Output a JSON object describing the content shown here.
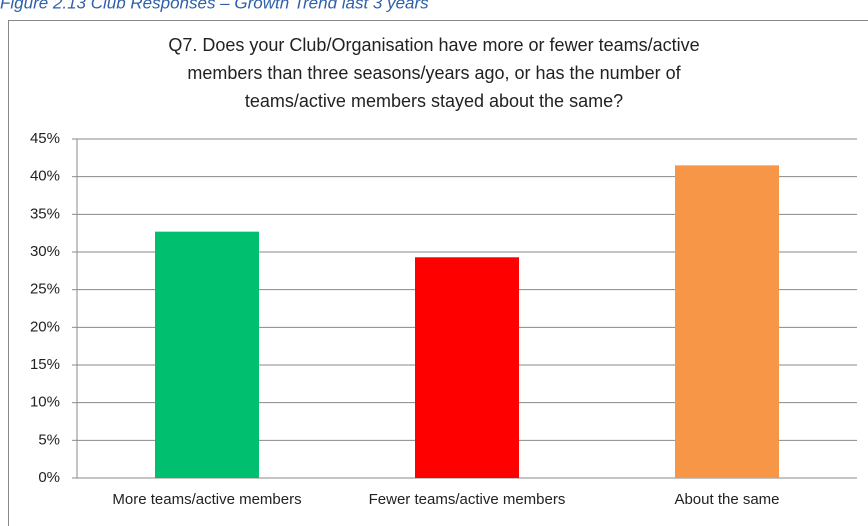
{
  "caption": "Figure 2.13 Club Responses – Growth Trend last 3 years",
  "chart_data": {
    "type": "bar",
    "title": [
      "Q7. Does your Club/Organisation have more or fewer teams/active",
      "members than three seasons/years ago, or has the number of",
      "teams/active members stayed about the same?"
    ],
    "categories": [
      "More teams/active members",
      "Fewer teams/active members",
      "About the same"
    ],
    "values": [
      32.7,
      29.3,
      41.5
    ],
    "colors": [
      "#00bf6f",
      "#ff0000",
      "#f79646"
    ],
    "ylim": [
      0,
      45
    ],
    "yticks": [
      {
        "value": 0,
        "label": "0%"
      },
      {
        "value": 5,
        "label": "5%"
      },
      {
        "value": 10,
        "label": "10%"
      },
      {
        "value": 15,
        "label": "15%"
      },
      {
        "value": 20,
        "label": "20%"
      },
      {
        "value": 25,
        "label": "25%"
      },
      {
        "value": 30,
        "label": "30%"
      },
      {
        "value": 35,
        "label": "35%"
      },
      {
        "value": 40,
        "label": "40%"
      },
      {
        "value": 45,
        "label": "45%"
      }
    ],
    "grid": true
  }
}
